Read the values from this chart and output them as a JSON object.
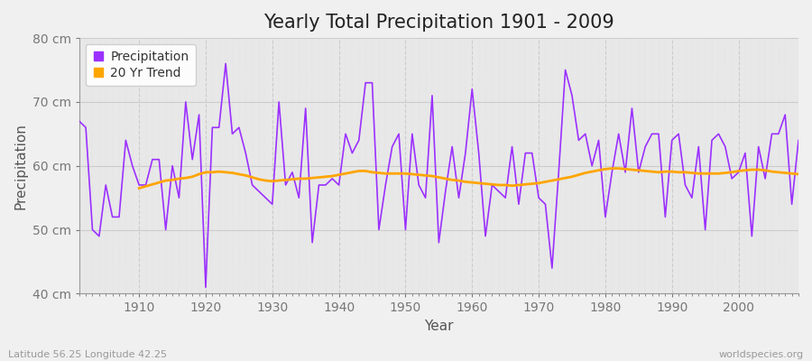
{
  "title": "Yearly Total Precipitation 1901 - 2009",
  "xlabel": "Year",
  "ylabel": "Precipitation",
  "lat_lon_label": "Latitude 56.25 Longitude 42.25",
  "watermark": "worldspecies.org",
  "years": [
    1901,
    1902,
    1903,
    1904,
    1905,
    1906,
    1907,
    1908,
    1909,
    1910,
    1911,
    1912,
    1913,
    1914,
    1915,
    1916,
    1917,
    1918,
    1919,
    1920,
    1921,
    1922,
    1923,
    1924,
    1925,
    1926,
    1927,
    1928,
    1929,
    1930,
    1931,
    1932,
    1933,
    1934,
    1935,
    1936,
    1937,
    1938,
    1939,
    1940,
    1941,
    1942,
    1943,
    1944,
    1945,
    1946,
    1947,
    1948,
    1949,
    1950,
    1951,
    1952,
    1953,
    1954,
    1955,
    1956,
    1957,
    1958,
    1959,
    1960,
    1961,
    1962,
    1963,
    1964,
    1965,
    1966,
    1967,
    1968,
    1969,
    1970,
    1971,
    1972,
    1973,
    1974,
    1975,
    1976,
    1977,
    1978,
    1979,
    1980,
    1981,
    1982,
    1983,
    1984,
    1985,
    1986,
    1987,
    1988,
    1989,
    1990,
    1991,
    1992,
    1993,
    1994,
    1995,
    1996,
    1997,
    1998,
    1999,
    2000,
    2001,
    2002,
    2003,
    2004,
    2005,
    2006,
    2007,
    2008,
    2009
  ],
  "precipitation": [
    67,
    66,
    50,
    49,
    57,
    52,
    52,
    64,
    60,
    57,
    57,
    61,
    61,
    50,
    60,
    55,
    70,
    61,
    68,
    41,
    66,
    66,
    76,
    65,
    66,
    62,
    57,
    56,
    55,
    54,
    70,
    57,
    59,
    55,
    69,
    48,
    57,
    57,
    58,
    57,
    65,
    62,
    64,
    73,
    73,
    50,
    57,
    63,
    65,
    50,
    65,
    57,
    55,
    71,
    48,
    56,
    63,
    55,
    62,
    72,
    62,
    49,
    57,
    56,
    55,
    63,
    54,
    62,
    62,
    55,
    54,
    44,
    59,
    75,
    71,
    64,
    65,
    60,
    64,
    52,
    59,
    65,
    59,
    69,
    59,
    63,
    65,
    65,
    52,
    64,
    65,
    57,
    55,
    63,
    50,
    64,
    65,
    63,
    58,
    59,
    62,
    49,
    63,
    58,
    65,
    65,
    68,
    54,
    64
  ],
  "trend_years": [
    1910,
    1911,
    1912,
    1913,
    1914,
    1915,
    1916,
    1917,
    1918,
    1919,
    1920,
    1921,
    1922,
    1923,
    1924,
    1925,
    1926,
    1927,
    1928,
    1929,
    1930,
    1931,
    1932,
    1933,
    1934,
    1935,
    1936,
    1937,
    1938,
    1939,
    1940,
    1941,
    1942,
    1943,
    1944,
    1945,
    1946,
    1947,
    1948,
    1949,
    1950,
    1951,
    1952,
    1953,
    1954,
    1955,
    1956,
    1957,
    1958,
    1959,
    1960,
    1961,
    1962,
    1963,
    1964,
    1965,
    1966,
    1967,
    1968,
    1969,
    1970,
    1971,
    1972,
    1973,
    1974,
    1975,
    1976,
    1977,
    1978,
    1979,
    1980,
    1981,
    1982,
    1983,
    1984,
    1985,
    1986,
    1987,
    1988,
    1989,
    1990,
    1991,
    1992,
    1993,
    1994,
    1995,
    1996,
    1997,
    1998,
    1999,
    2000,
    2001,
    2002,
    2003,
    2004,
    2005,
    2006,
    2007,
    2008,
    2009
  ],
  "trend": [
    56.5,
    56.8,
    57.1,
    57.4,
    57.7,
    57.8,
    58.0,
    58.1,
    58.3,
    58.7,
    59.0,
    59.0,
    59.1,
    59.0,
    58.9,
    58.7,
    58.5,
    58.2,
    57.9,
    57.7,
    57.6,
    57.7,
    57.8,
    57.9,
    58.0,
    58.0,
    58.1,
    58.2,
    58.3,
    58.4,
    58.6,
    58.8,
    59.0,
    59.2,
    59.2,
    59.0,
    58.9,
    58.8,
    58.8,
    58.8,
    58.8,
    58.7,
    58.6,
    58.5,
    58.4,
    58.2,
    58.0,
    57.8,
    57.7,
    57.5,
    57.4,
    57.3,
    57.2,
    57.1,
    57.0,
    57.0,
    56.9,
    57.0,
    57.1,
    57.2,
    57.3,
    57.5,
    57.7,
    57.9,
    58.1,
    58.3,
    58.6,
    58.9,
    59.1,
    59.3,
    59.5,
    59.6,
    59.6,
    59.5,
    59.4,
    59.3,
    59.2,
    59.1,
    59.0,
    59.1,
    59.1,
    59.0,
    59.0,
    58.9,
    58.8,
    58.8,
    58.8,
    58.8,
    58.9,
    59.0,
    59.2,
    59.3,
    59.4,
    59.4,
    59.3,
    59.1,
    59.0,
    58.9,
    58.8,
    58.7
  ],
  "precip_color": "#9B30FF",
  "trend_color": "#FFA500",
  "fig_bg_color": "#F0F0F0",
  "plot_bg_color": "#E8E8E8",
  "grid_color_h": "#CCCCCC",
  "grid_color_v": "#CCCCCC",
  "ylim": [
    40,
    80
  ],
  "yticks": [
    40,
    50,
    60,
    70,
    80
  ],
  "ytick_labels": [
    "40 cm",
    "50 cm",
    "60 cm",
    "70 cm",
    "80 cm"
  ],
  "xlim": [
    1901,
    2009
  ],
  "xticks": [
    1910,
    1920,
    1930,
    1940,
    1950,
    1960,
    1970,
    1980,
    1990,
    2000
  ],
  "title_fontsize": 15,
  "axis_label_fontsize": 11,
  "tick_fontsize": 10,
  "legend_fontsize": 10
}
